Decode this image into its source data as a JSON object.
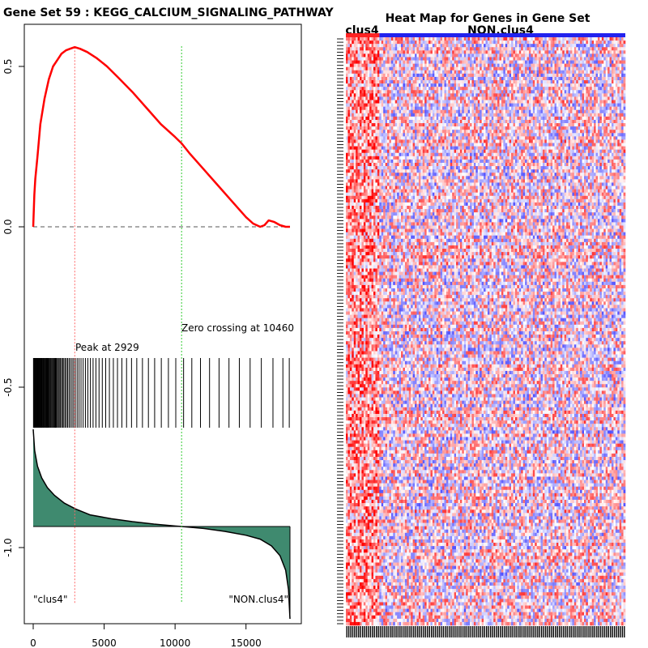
{
  "chart_data": [
    {
      "type": "line",
      "title": "Gene Set  59 : KEGG_CALCIUM_SIGNALING_PATHWAY",
      "xlabel": "",
      "ylabel": "",
      "xlim": [
        0,
        18100
      ],
      "ylim": [
        -1.2,
        0.62
      ],
      "x_ticks": [
        0,
        5000,
        10000,
        15000
      ],
      "y_ticks": [
        0.0,
        -0.5,
        -1.0
      ],
      "extra_y_ticks": [
        0.5
      ],
      "enrichment_x": [
        0,
        80,
        150,
        300,
        500,
        800,
        1100,
        1400,
        1700,
        2000,
        2300,
        2600,
        2929,
        3300,
        3800,
        4500,
        5200,
        6000,
        7000,
        8000,
        9000,
        10000,
        10460,
        11000,
        12000,
        13000,
        14000,
        15000,
        15500,
        16000,
        16300,
        16600,
        17000,
        17400,
        17800,
        18100
      ],
      "enrichment_y": [
        0.0,
        0.1,
        0.15,
        0.22,
        0.32,
        0.4,
        0.46,
        0.5,
        0.52,
        0.54,
        0.55,
        0.555,
        0.56,
        0.555,
        0.545,
        0.525,
        0.5,
        0.465,
        0.42,
        0.37,
        0.32,
        0.28,
        0.26,
        0.23,
        0.18,
        0.13,
        0.08,
        0.03,
        0.01,
        0.0,
        0.005,
        0.02,
        0.015,
        0.005,
        0.0,
        0.0
      ],
      "peak_x": 2929,
      "zero_crossing_x": 10460,
      "peak_label": "Peak at 2929",
      "zero_crossing_label": "Zero crossing at 10460",
      "left_group_label": "\"clus4\"",
      "right_group_label": "\"NON.clus4\"",
      "hit_positions": [
        20,
        55,
        90,
        120,
        160,
        190,
        230,
        260,
        300,
        340,
        370,
        410,
        450,
        480,
        520,
        560,
        600,
        640,
        690,
        730,
        780,
        830,
        870,
        920,
        970,
        1010,
        1060,
        1110,
        1160,
        1220,
        1270,
        1330,
        1390,
        1450,
        1510,
        1570,
        1630,
        1700,
        1770,
        1840,
        1920,
        2000,
        2080,
        2160,
        2250,
        2340,
        2430,
        2530,
        2630,
        2740,
        2850,
        2970,
        3100,
        3230,
        3370,
        3520,
        3680,
        3850,
        4030,
        4220,
        4420,
        4640,
        4870,
        5110,
        5370,
        5650,
        5940,
        6250,
        6580,
        6930,
        7300,
        7700,
        8120,
        8560,
        9030,
        9530,
        10050,
        10600,
        11180,
        11790,
        12430,
        13100,
        13800,
        14530,
        15290,
        16080,
        16900,
        17600,
        18050
      ],
      "ranked_metric_curve": {
        "x": [
          0,
          100,
          300,
          600,
          1000,
          1500,
          2200,
          3000,
          4000,
          5500,
          7000,
          8500,
          10000,
          10460,
          12000,
          13500,
          15000,
          16000,
          16800,
          17400,
          17800,
          18000,
          18100
        ],
        "y": [
          1.0,
          0.78,
          0.62,
          0.5,
          0.4,
          0.32,
          0.24,
          0.18,
          0.12,
          0.08,
          0.05,
          0.025,
          0.005,
          0.0,
          -0.02,
          -0.05,
          -0.09,
          -0.13,
          -0.2,
          -0.3,
          -0.45,
          -0.65,
          -0.95
        ]
      },
      "colors": {
        "enrichment_line": "#ff0000",
        "peak_line": "#ff6666",
        "zero_crossing_line": "#33cc33",
        "metric_fill": "#3f8a6f",
        "hits": "#000000"
      }
    },
    {
      "type": "heatmap",
      "title": "Heat Map for Genes in Gene Set",
      "groups": [
        {
          "label": "clus4",
          "color": "#ff2222",
          "fraction": 0.12
        },
        {
          "label": "NON.clus4",
          "color": "#2222ee",
          "fraction": 0.88
        }
      ],
      "n_genes": 178,
      "n_samples": 142,
      "color_scale": {
        "low": "#0000ff",
        "mid": "#ffffff",
        "high": "#ff0000"
      }
    }
  ]
}
